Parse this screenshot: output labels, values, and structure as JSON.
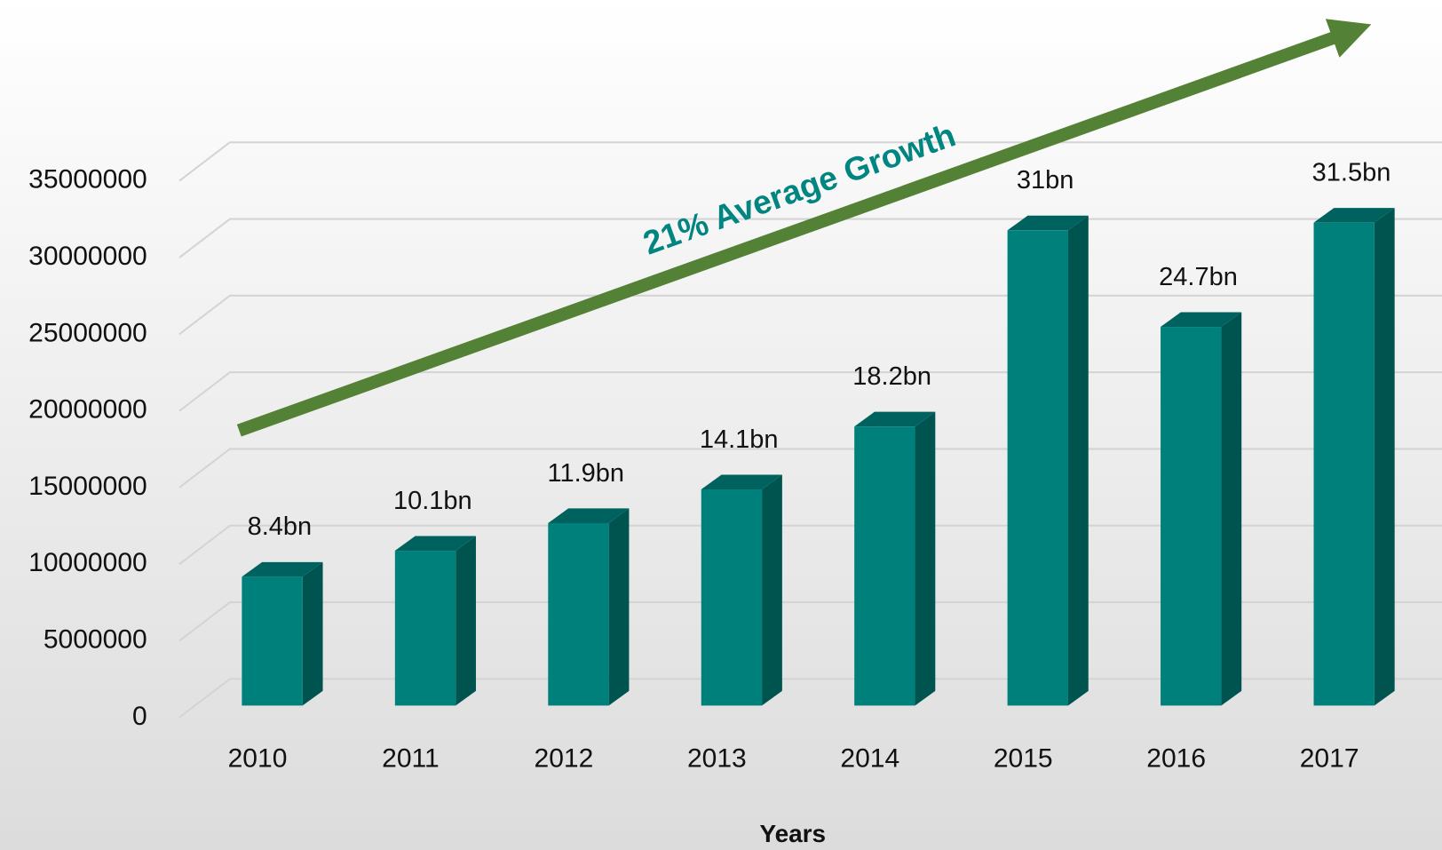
{
  "chart_data": {
    "type": "bar3d",
    "x_label": "Years",
    "annotation": "21% Average Growth",
    "categories": [
      "2010",
      "2011",
      "2012",
      "2013",
      "2014",
      "2015",
      "2016",
      "2017"
    ],
    "values": [
      8400000,
      10100000,
      11900000,
      14100000,
      18200000,
      31000000,
      24700000,
      31500000
    ],
    "value_labels": [
      "8.4bn",
      "10.1bn",
      "11.9bn",
      "14.1bn",
      "18.2bn",
      "31bn",
      "24.7bn",
      "31.5bn"
    ],
    "color": "#00807b",
    "ylim": [
      0,
      35000000
    ],
    "yticks": [
      0,
      5000000,
      10000000,
      15000000,
      20000000,
      25000000,
      30000000,
      35000000
    ],
    "grid": true
  }
}
